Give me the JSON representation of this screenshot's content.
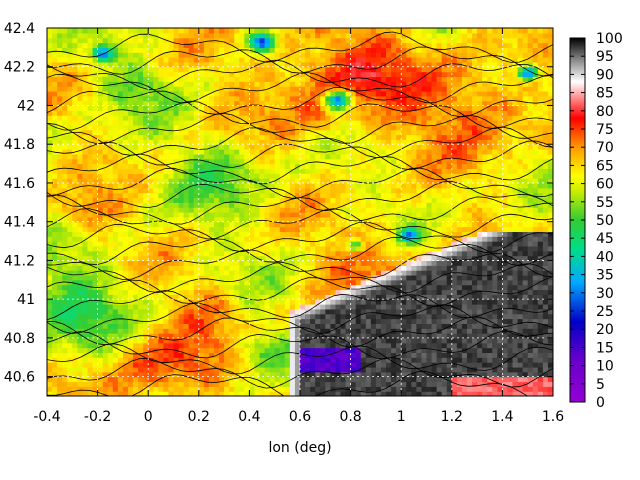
{
  "chart_data": {
    "type": "heatmap",
    "title": "",
    "xlabel": "lon (deg)",
    "ylabel": "",
    "xlim": [
      -0.4,
      1.6
    ],
    "ylim": [
      40.5,
      42.4
    ],
    "x_ticks": [
      "-0.4",
      "-0.2",
      "0",
      "0.2",
      "0.4",
      "0.6",
      "0.8",
      "1",
      "1.2",
      "1.4",
      "1.6"
    ],
    "y_ticks": [
      "40.6",
      "40.8",
      "41",
      "41.2",
      "41.4",
      "41.6",
      "41.8",
      "42",
      "42.2",
      "42.4"
    ],
    "colorbar": {
      "range": [
        0,
        100
      ],
      "ticks": [
        "0",
        "5",
        "10",
        "15",
        "20",
        "25",
        "30",
        "35",
        "40",
        "45",
        "50",
        "55",
        "60",
        "65",
        "70",
        "75",
        "80",
        "85",
        "90",
        "95",
        "100"
      ]
    },
    "grid": true,
    "contours": true,
    "colors": {
      "low": "#9400d3",
      "blue": "#0000c8",
      "cyan": "#00c8ff",
      "green": "#32c832",
      "yellow": "#ffff00",
      "orange": "#ff9900",
      "red": "#ff0000",
      "pink": "#ff9999",
      "gray": "#888888",
      "high": "#000000"
    }
  }
}
